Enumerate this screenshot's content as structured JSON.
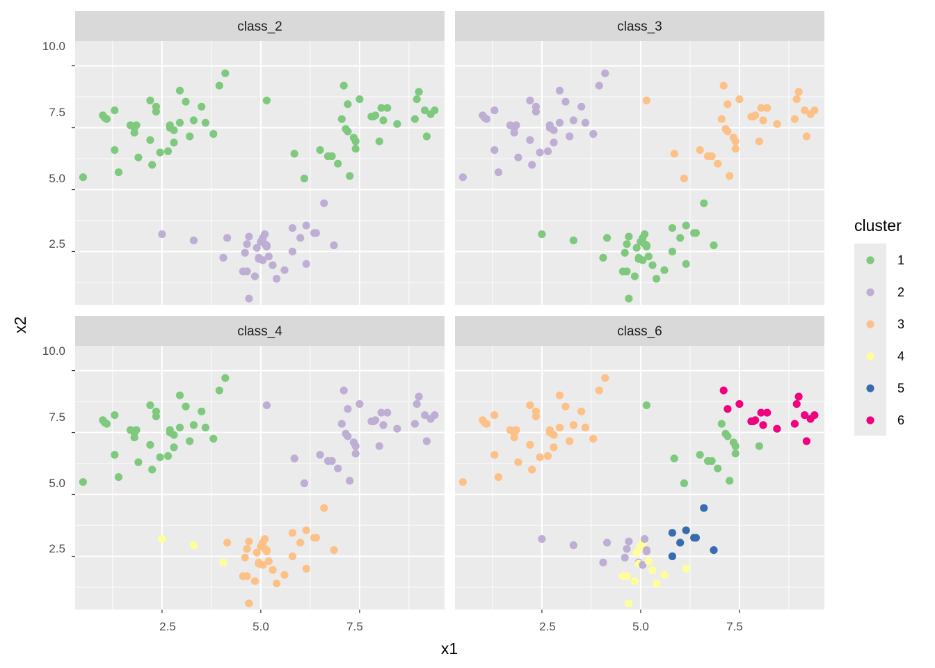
{
  "chart_data": {
    "type": "scatter",
    "facets": [
      "class_2",
      "class_3",
      "class_4",
      "class_6"
    ],
    "xlabel": "x1",
    "ylabel": "x2",
    "xlim": [
      0.3,
      9.65
    ],
    "ylim": [
      0.35,
      11.0
    ],
    "x_ticks": [
      2.5,
      5.0,
      7.5
    ],
    "y_ticks": [
      2.5,
      5.0,
      7.5,
      10.0
    ],
    "x_tick_labels": [
      "2.5",
      "5.0",
      "7.5"
    ],
    "y_tick_labels": [
      "2.5",
      "5.0",
      "7.5",
      "10.0"
    ],
    "grid": true,
    "legend": {
      "title": "cluster",
      "position": "right",
      "entries": [
        {
          "label": "1",
          "color": "#7fc97f"
        },
        {
          "label": "2",
          "color": "#beaed4"
        },
        {
          "label": "3",
          "color": "#fdc086"
        },
        {
          "label": "4",
          "color": "#ffff99"
        },
        {
          "label": "5",
          "color": "#386cb0"
        },
        {
          "label": "6",
          "color": "#f0027f"
        }
      ]
    },
    "points": [
      [
        0.5,
        5.5
      ],
      [
        1.0,
        8.0
      ],
      [
        1.05,
        7.9
      ],
      [
        1.1,
        7.85
      ],
      [
        1.3,
        8.2
      ],
      [
        1.3,
        6.6
      ],
      [
        1.4,
        5.7
      ],
      [
        1.7,
        7.6
      ],
      [
        1.8,
        7.5
      ],
      [
        1.8,
        7.3
      ],
      [
        1.85,
        7.6
      ],
      [
        1.9,
        6.3
      ],
      [
        2.2,
        8.6
      ],
      [
        2.2,
        7.0
      ],
      [
        2.25,
        6.0
      ],
      [
        2.35,
        8.35
      ],
      [
        2.35,
        8.15
      ],
      [
        2.45,
        6.5
      ],
      [
        2.65,
        6.55
      ],
      [
        2.7,
        7.6
      ],
      [
        2.7,
        7.5
      ],
      [
        2.8,
        7.4
      ],
      [
        2.8,
        6.9
      ],
      [
        2.95,
        9.0
      ],
      [
        2.95,
        7.7
      ],
      [
        3.1,
        8.55
      ],
      [
        3.2,
        7.15
      ],
      [
        3.3,
        7.8
      ],
      [
        3.5,
        8.35
      ],
      [
        3.6,
        7.7
      ],
      [
        3.8,
        7.25
      ],
      [
        3.95,
        9.2
      ],
      [
        4.1,
        9.7
      ],
      [
        5.15,
        8.6
      ],
      [
        5.85,
        6.45
      ],
      [
        6.1,
        5.45
      ],
      [
        6.5,
        6.6
      ],
      [
        6.7,
        6.35
      ],
      [
        6.8,
        6.35
      ],
      [
        6.95,
        6.05
      ],
      [
        7.05,
        7.85
      ],
      [
        7.1,
        9.2
      ],
      [
        7.15,
        7.45
      ],
      [
        7.2,
        8.45
      ],
      [
        7.2,
        7.35
      ],
      [
        7.25,
        5.55
      ],
      [
        7.35,
        7.1
      ],
      [
        7.4,
        6.95
      ],
      [
        7.4,
        6.65
      ],
      [
        7.5,
        8.65
      ],
      [
        7.8,
        7.95
      ],
      [
        7.85,
        7.95
      ],
      [
        7.9,
        8.0
      ],
      [
        8.0,
        6.95
      ],
      [
        8.05,
        8.3
      ],
      [
        8.1,
        7.8
      ],
      [
        8.2,
        8.3
      ],
      [
        8.45,
        7.65
      ],
      [
        8.9,
        7.85
      ],
      [
        8.95,
        8.65
      ],
      [
        9.0,
        8.95
      ],
      [
        9.15,
        8.2
      ],
      [
        9.2,
        7.15
      ],
      [
        9.3,
        8.05
      ],
      [
        9.4,
        8.2
      ],
      [
        2.5,
        3.2
      ],
      [
        3.3,
        2.95
      ],
      [
        4.05,
        2.25
      ],
      [
        4.15,
        3.05
      ],
      [
        4.55,
        1.7
      ],
      [
        4.6,
        2.45
      ],
      [
        4.65,
        2.8
      ],
      [
        4.65,
        1.7
      ],
      [
        4.7,
        3.1
      ],
      [
        4.7,
        0.6
      ],
      [
        4.85,
        1.5
      ],
      [
        4.9,
        2.65
      ],
      [
        4.95,
        2.25
      ],
      [
        4.95,
        2.2
      ],
      [
        5.0,
        2.9
      ],
      [
        5.05,
        3.05
      ],
      [
        5.05,
        2.15
      ],
      [
        5.1,
        3.2
      ],
      [
        5.1,
        2.8
      ],
      [
        5.15,
        2.75
      ],
      [
        5.15,
        2.7
      ],
      [
        5.2,
        2.3
      ],
      [
        5.3,
        1.95
      ],
      [
        5.4,
        1.4
      ],
      [
        5.6,
        1.75
      ],
      [
        5.8,
        3.45
      ],
      [
        5.8,
        2.5
      ],
      [
        6.0,
        3.05
      ],
      [
        6.15,
        3.55
      ],
      [
        6.15,
        2.0
      ],
      [
        6.35,
        3.25
      ],
      [
        6.4,
        3.25
      ],
      [
        6.6,
        4.45
      ],
      [
        6.85,
        2.75
      ]
    ],
    "cluster_assignments": {
      "class_2": [
        "1",
        "1",
        "1",
        "1",
        "1",
        "1",
        "1",
        "1",
        "1",
        "1",
        "1",
        "1",
        "1",
        "1",
        "1",
        "1",
        "1",
        "1",
        "1",
        "1",
        "1",
        "1",
        "1",
        "1",
        "1",
        "1",
        "1",
        "1",
        "1",
        "1",
        "1",
        "1",
        "1",
        "1",
        "1",
        "1",
        "1",
        "1",
        "1",
        "1",
        "1",
        "1",
        "1",
        "1",
        "1",
        "1",
        "1",
        "1",
        "1",
        "1",
        "1",
        "1",
        "1",
        "1",
        "1",
        "1",
        "1",
        "1",
        "1",
        "1",
        "1",
        "1",
        "1",
        "1",
        "1",
        "2",
        "2",
        "2",
        "2",
        "2",
        "2",
        "2",
        "2",
        "2",
        "2",
        "2",
        "2",
        "2",
        "2",
        "2",
        "2",
        "2",
        "2",
        "2",
        "2",
        "2",
        "2",
        "2",
        "2",
        "2",
        "2",
        "2",
        "2",
        "2",
        "2",
        "2",
        "2",
        "2",
        "2"
      ],
      "class_3": [
        "2",
        "2",
        "2",
        "2",
        "2",
        "2",
        "2",
        "2",
        "2",
        "2",
        "2",
        "2",
        "2",
        "2",
        "2",
        "2",
        "2",
        "2",
        "2",
        "2",
        "2",
        "2",
        "2",
        "2",
        "2",
        "2",
        "2",
        "2",
        "2",
        "2",
        "2",
        "2",
        "2",
        "3",
        "3",
        "3",
        "3",
        "3",
        "3",
        "3",
        "3",
        "3",
        "3",
        "3",
        "3",
        "3",
        "3",
        "3",
        "3",
        "3",
        "3",
        "3",
        "3",
        "3",
        "3",
        "3",
        "3",
        "3",
        "3",
        "3",
        "3",
        "3",
        "3",
        "3",
        "3",
        "1",
        "1",
        "1",
        "1",
        "1",
        "1",
        "1",
        "1",
        "1",
        "1",
        "1",
        "1",
        "1",
        "1",
        "1",
        "1",
        "1",
        "1",
        "1",
        "1",
        "1",
        "1",
        "1",
        "1",
        "1",
        "1",
        "1",
        "1",
        "1",
        "1",
        "1",
        "1",
        "1",
        "1"
      ],
      "class_4": [
        "1",
        "1",
        "1",
        "1",
        "1",
        "1",
        "1",
        "1",
        "1",
        "1",
        "1",
        "1",
        "1",
        "1",
        "1",
        "1",
        "1",
        "1",
        "1",
        "1",
        "1",
        "1",
        "1",
        "1",
        "1",
        "1",
        "1",
        "1",
        "1",
        "1",
        "1",
        "1",
        "1",
        "2",
        "2",
        "2",
        "2",
        "2",
        "2",
        "2",
        "2",
        "2",
        "2",
        "2",
        "2",
        "2",
        "2",
        "2",
        "2",
        "2",
        "2",
        "2",
        "2",
        "2",
        "2",
        "2",
        "2",
        "2",
        "2",
        "2",
        "2",
        "2",
        "2",
        "2",
        "2",
        "4",
        "4",
        "4",
        "3",
        "3",
        "3",
        "3",
        "3",
        "3",
        "3",
        "3",
        "3",
        "3",
        "3",
        "3",
        "3",
        "3",
        "3",
        "3",
        "3",
        "3",
        "3",
        "3",
        "3",
        "3",
        "3",
        "3",
        "3",
        "3",
        "3",
        "3",
        "3",
        "3",
        "3"
      ],
      "class_6": [
        "3",
        "3",
        "3",
        "3",
        "3",
        "3",
        "3",
        "3",
        "3",
        "3",
        "3",
        "3",
        "3",
        "3",
        "3",
        "3",
        "3",
        "3",
        "3",
        "3",
        "3",
        "3",
        "3",
        "3",
        "3",
        "3",
        "3",
        "3",
        "3",
        "3",
        "3",
        "3",
        "3",
        "1",
        "1",
        "1",
        "1",
        "1",
        "1",
        "1",
        "1",
        "6",
        "1",
        "6",
        "1",
        "1",
        "1",
        "1",
        "1",
        "6",
        "6",
        "6",
        "6",
        "1",
        "6",
        "6",
        "6",
        "6",
        "6",
        "6",
        "6",
        "6",
        "6",
        "6",
        "6",
        "2",
        "2",
        "2",
        "2",
        "4",
        "2",
        "2",
        "4",
        "2",
        "4",
        "4",
        "4",
        "2",
        "4",
        "4",
        "4",
        "2",
        "2",
        "4",
        "2",
        "2",
        "4",
        "4",
        "4",
        "4",
        "5",
        "5",
        "5",
        "5",
        "4",
        "5",
        "5",
        "5",
        "5"
      ]
    }
  }
}
